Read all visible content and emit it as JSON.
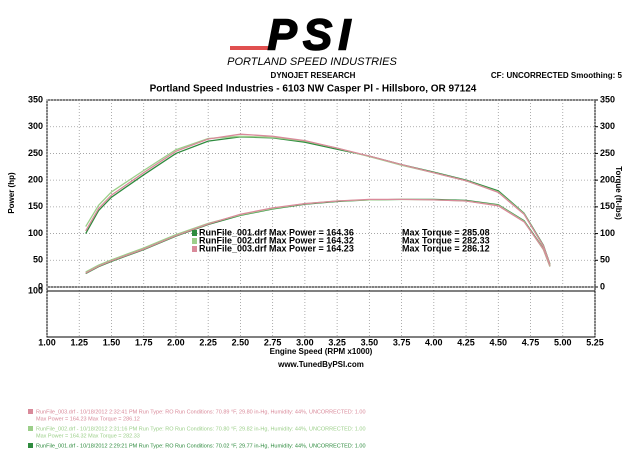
{
  "header": {
    "logo": "PSI",
    "logo_sub": "PORTLAND SPEED INDUSTRIES",
    "company": "DYNOJET RESEARCH",
    "settings": "CF: UNCORRECTED  Smoothing: 5",
    "address": "Portland Speed Industries - 6103 NW Casper Pl - Hillsboro, OR 97124"
  },
  "chart_data": {
    "type": "line",
    "ylabel": "Power (hp)",
    "y2label": "Torque (ft-lbs)",
    "xlabel": "Engine Speed (RPM x1000)",
    "url": "www.TunedByPSI.com",
    "x": [
      1.3,
      1.4,
      1.5,
      1.75,
      2.0,
      2.25,
      2.5,
      2.75,
      3.0,
      3.25,
      3.5,
      3.75,
      4.0,
      4.25,
      4.5,
      4.7,
      4.85,
      4.9
    ],
    "series": [
      {
        "color": "#2e8b3e",
        "values": [
          25,
          38,
          48,
          70,
          95,
          117,
          134,
          146,
          155,
          160,
          163,
          164,
          164,
          162,
          154,
          124,
          72,
          40
        ]
      },
      {
        "color": "#9ccf8a",
        "values": [
          28,
          41,
          51,
          73,
          98,
          119,
          135,
          147,
          156,
          161,
          163,
          164,
          163,
          161,
          153,
          123,
          70,
          38
        ]
      },
      {
        "color": "#d98a9a",
        "values": [
          26,
          39,
          49,
          71,
          96,
          118,
          136,
          148,
          156,
          161,
          164,
          164,
          163,
          161,
          152,
          122,
          71,
          39
        ]
      },
      {
        "color": "#2e8b3e",
        "axis": "y2",
        "values": [
          100,
          143,
          168,
          210,
          250,
          273,
          281,
          279,
          271,
          258,
          245,
          229,
          215,
          200,
          180,
          138,
          78,
          43
        ]
      },
      {
        "color": "#9ccf8a",
        "axis": "y2",
        "values": [
          113,
          153,
          178,
          218,
          257,
          278,
          282,
          280,
          273,
          260,
          244,
          228,
          214,
          199,
          178,
          137,
          76,
          41
        ]
      },
      {
        "color": "#d98a9a",
        "axis": "y2",
        "values": [
          105,
          147,
          172,
          214,
          254,
          277,
          286,
          282,
          274,
          260,
          245,
          229,
          214,
          199,
          177,
          136,
          77,
          42
        ]
      }
    ],
    "annotations": [
      {
        "text": "RunFile_001.drf Max Power = 164.36",
        "text2": "Max Torque = 285.08"
      },
      {
        "text": "RunFile_002.drf Max Power = 164.32",
        "text2": "Max Torque = 282.33"
      },
      {
        "text": "RunFile_003.drf Max Power = 164.23",
        "text2": "Max Torque = 286.12"
      }
    ],
    "xlim": [
      1,
      5.25
    ],
    "xticks": [
      {
        "value": 1,
        "label": "1.00"
      },
      {
        "value": 1.25,
        "label": "1.25"
      },
      {
        "value": 1.5,
        "label": "1.50"
      },
      {
        "value": 1.75,
        "label": "1.75"
      },
      {
        "value": 2,
        "label": "2.00"
      },
      {
        "value": 2.25,
        "label": "2.25"
      },
      {
        "value": 2.5,
        "label": "2.50"
      },
      {
        "value": 2.75,
        "label": "2.75"
      },
      {
        "value": 3,
        "label": "3.00"
      },
      {
        "value": 3.25,
        "label": "3.25"
      },
      {
        "value": 3.5,
        "label": "3.50"
      },
      {
        "value": 3.75,
        "label": "3.75"
      },
      {
        "value": 4,
        "label": "4.00"
      },
      {
        "value": 4.25,
        "label": "4.25"
      },
      {
        "value": 4.5,
        "label": "4.50"
      },
      {
        "value": 4.75,
        "label": "4.75"
      },
      {
        "value": 5,
        "label": "5.00"
      },
      {
        "value": 5.25,
        "label": "5.25"
      }
    ],
    "ylim": [
      0,
      350
    ],
    "yticks": [
      0,
      50,
      100,
      150,
      200,
      250,
      300,
      350
    ],
    "y2lim": [
      0,
      350
    ],
    "y2ticks": [
      0,
      50,
      100,
      150,
      200,
      250,
      300,
      350
    ],
    "subplot": {
      "ylim": [
        0,
        100
      ],
      "yticks": [
        100
      ]
    },
    "grid": true
  },
  "footer": [
    {
      "run": "RunFile_003.drf - 10/18/2012 2:32:41 PM  Run Type: RO  Run Conditions: 70.89 °F, 29.80 in-Hg, Humidity: 44%, UNCORRECTED: 1.00",
      "max": "Max Power = 164.23  Max Torque = 286.12"
    },
    {
      "run": "RunFile_002.drf - 10/18/2012 2:31:16 PM  Run Type: RO  Run Conditions: 70.80 °F, 29.82 in-Hg, Humidity: 44%, UNCORRECTED: 1.00",
      "max": "Max Power = 164.32  Max Torque = 282.33"
    },
    {
      "run": "RunFile_001.drf - 10/18/2012 2:29:21 PM  Run Type: RO  Run Conditions: 70.02 °F, 29.77 in-Hg, Humidity: 44%, UNCORRECTED: 1.00"
    }
  ]
}
